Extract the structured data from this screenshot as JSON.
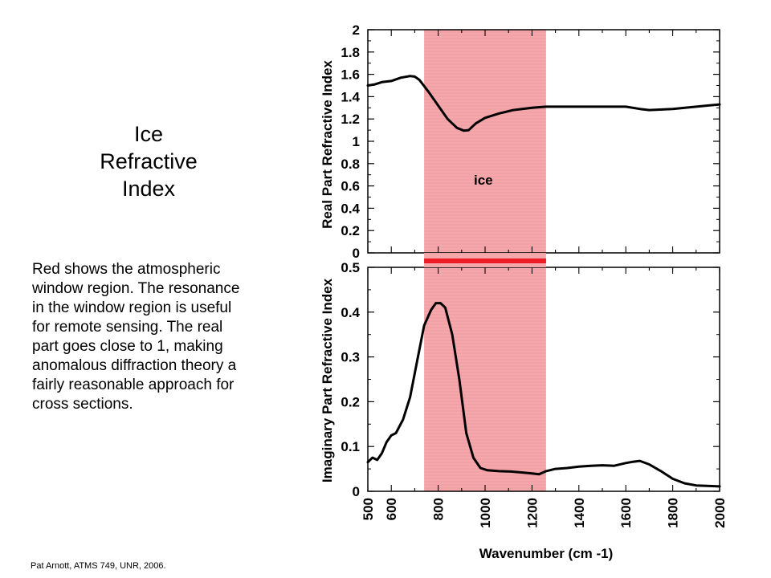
{
  "slide": {
    "title": "Ice\nRefractive\nIndex",
    "body": "Red shows the atmospheric\nwindow region. The resonance\nin the window region is useful\nfor remote sensing.  The real\npart goes close to 1, making\nanomalous diffraction theory a\nfairly reasonable approach for\ncross sections.",
    "footer": "Pat Arnott, ATMS 749, UNR, 2006."
  },
  "colors": {
    "window_fill": "#f4a3a6",
    "window_bar": "#ee1c24",
    "line": "#000000"
  },
  "chart_data": [
    {
      "type": "line",
      "ylabel": "Real Part Refractive Index",
      "xlim": [
        500,
        2000
      ],
      "ylim": [
        0,
        2
      ],
      "yticks": [
        "0",
        "0.2",
        "0.4",
        "0.6",
        "0.8",
        "1",
        "1.2",
        "1.4",
        "1.6",
        "1.8",
        "2"
      ],
      "annotation": "ice",
      "shaded_region": [
        740,
        1260
      ],
      "series": [
        {
          "x": [
            500,
            530,
            560,
            600,
            640,
            680,
            700,
            720,
            760,
            800,
            840,
            880,
            910,
            930,
            960,
            1000,
            1060,
            1120,
            1200,
            1260,
            1300,
            1400,
            1500,
            1600,
            1660,
            1700,
            1800,
            1900,
            2000
          ],
          "y": [
            1.5,
            1.51,
            1.53,
            1.54,
            1.57,
            1.585,
            1.58,
            1.55,
            1.44,
            1.32,
            1.2,
            1.12,
            1.095,
            1.1,
            1.16,
            1.21,
            1.25,
            1.28,
            1.3,
            1.31,
            1.31,
            1.31,
            1.31,
            1.31,
            1.29,
            1.28,
            1.29,
            1.31,
            1.33
          ]
        }
      ]
    },
    {
      "type": "line",
      "ylabel": "Imaginary Part Refractive Index",
      "xlabel": "Wavenumber (cm -1)",
      "xlim": [
        500,
        2000
      ],
      "ylim": [
        0,
        0.5
      ],
      "xticks": [
        "500",
        "600",
        "800",
        "1000",
        "1200",
        "1400",
        "1600",
        "1800",
        "2000"
      ],
      "yticks": [
        "0",
        "0.1",
        "0.2",
        "0.3",
        "0.4",
        "0.5"
      ],
      "shaded_region": [
        740,
        1260
      ],
      "series": [
        {
          "x": [
            500,
            520,
            540,
            560,
            580,
            600,
            620,
            650,
            680,
            710,
            740,
            770,
            790,
            810,
            830,
            860,
            890,
            920,
            950,
            980,
            1010,
            1060,
            1110,
            1160,
            1200,
            1230,
            1260,
            1300,
            1350,
            1400,
            1450,
            1500,
            1550,
            1600,
            1630,
            1660,
            1700,
            1750,
            1800,
            1850,
            1900,
            2000
          ],
          "y": [
            0.065,
            0.075,
            0.07,
            0.085,
            0.11,
            0.125,
            0.13,
            0.16,
            0.21,
            0.29,
            0.37,
            0.405,
            0.42,
            0.42,
            0.41,
            0.35,
            0.25,
            0.13,
            0.075,
            0.052,
            0.047,
            0.045,
            0.044,
            0.042,
            0.04,
            0.038,
            0.045,
            0.05,
            0.052,
            0.055,
            0.057,
            0.058,
            0.057,
            0.063,
            0.066,
            0.068,
            0.06,
            0.045,
            0.028,
            0.018,
            0.013,
            0.011
          ]
        }
      ]
    }
  ]
}
